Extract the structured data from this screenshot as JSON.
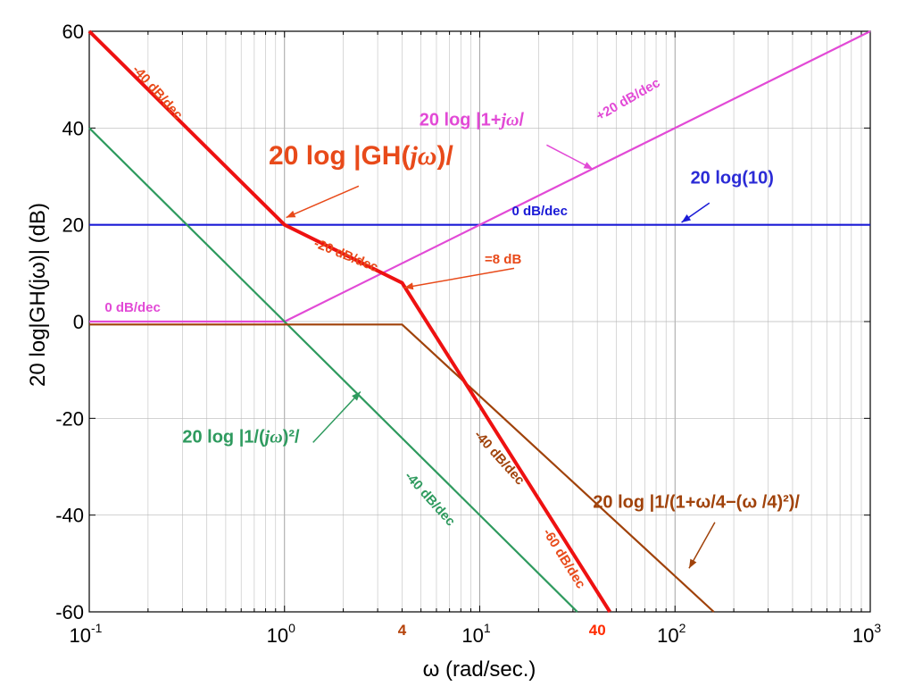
{
  "chart_data": {
    "type": "line",
    "title": "",
    "xlabel": "ω  (rad/sec.)",
    "ylabel": "20 log|GH(jω)| (dB)",
    "xscale": "log",
    "xlim": [
      0.1,
      1000
    ],
    "ylim": [
      -60,
      60
    ],
    "grid": true,
    "x_ticks": [
      {
        "mant": "10",
        "exp": "-1"
      },
      {
        "mant": "10",
        "exp": "0"
      },
      {
        "mant": "10",
        "exp": "1"
      },
      {
        "mant": "10",
        "exp": "2"
      },
      {
        "mant": "10",
        "exp": "3"
      }
    ],
    "y_ticks": [
      "60",
      "40",
      "20",
      "0",
      "-20",
      "-40",
      "-60"
    ],
    "extra_x_labels": [
      {
        "x": 4,
        "text": "4",
        "color": "#b5420a"
      },
      {
        "x": 40,
        "text": "40",
        "color": "#ff2a00"
      }
    ],
    "series": [
      {
        "id": "const",
        "color": "#1a1ad6",
        "points": [
          [
            0.1,
            20
          ],
          [
            1000,
            20
          ]
        ]
      },
      {
        "id": "zero",
        "color": "#e24ad6",
        "points": [
          [
            0.1,
            0
          ],
          [
            1,
            0
          ],
          [
            1000,
            60
          ]
        ]
      },
      {
        "id": "int2",
        "color": "#2e9a5e",
        "points": [
          [
            0.1,
            40
          ],
          [
            31.6,
            -60
          ]
        ]
      },
      {
        "id": "quad",
        "color": "#a0420a",
        "points": [
          [
            0.1,
            -0.6
          ],
          [
            4,
            -0.6
          ],
          [
            158,
            -60
          ]
        ]
      },
      {
        "id": "total",
        "color": "#ee1111",
        "points": [
          [
            0.1,
            60
          ],
          [
            1,
            20
          ],
          [
            4,
            8
          ],
          [
            46.4,
            -60
          ]
        ]
      }
    ],
    "annotations": [
      {
        "text": "-40 dB/dec",
        "color": "#e84a1a",
        "size": 15,
        "x": 0.165,
        "y": 52,
        "rotate": 48
      },
      {
        "text": "20 log |GH(",
        "italic": "jω",
        "tail": ")/",
        "color": "#e84a1a",
        "size": 30,
        "x": 0.83,
        "y": 32.5,
        "rotate": 0
      },
      {
        "text": "-20 dB/dec",
        "color": "#e84a1a",
        "size": 15,
        "x": 1.4,
        "y": 15.5,
        "rotate": 22
      },
      {
        "text": "=8 dB",
        "color": "#e84a1a",
        "size": 15,
        "x": 10.6,
        "y": 12,
        "rotate": 0
      },
      {
        "text": "0 dB/dec",
        "color": "#1a1ad6",
        "size": 15,
        "x": 14.6,
        "y": 22,
        "rotate": 0
      },
      {
        "text": "20 log(10)",
        "color": "#2b2bd6",
        "size": 20,
        "x": 120,
        "y": 28.5,
        "rotate": 0
      },
      {
        "text": "20 log |1+",
        "italic": "jω",
        "tail": "/",
        "color": "#e24ad6",
        "size": 20,
        "x": 4.9,
        "y": 40.5,
        "rotate": 0
      },
      {
        "text": "+20 dB/dec",
        "color": "#e24ad6",
        "size": 15,
        "x": 41,
        "y": 41.5,
        "rotate": -30
      },
      {
        "text": "0 dB/dec",
        "color": "#e24ad6",
        "size": 15,
        "x": 0.12,
        "y": 2,
        "rotate": 0
      },
      {
        "text": "-40 dB/dec",
        "color": "#a0420a",
        "size": 15,
        "x": 9.3,
        "y": -23.5,
        "rotate": 48
      },
      {
        "text": "20 log |1/(",
        "italic": "jω",
        "tail": ")²/",
        "color": "#2e9a5e",
        "size": 20,
        "x": 0.3,
        "y": -25,
        "rotate": 0
      },
      {
        "text": "-40 dB/dec",
        "color": "#2e9a5e",
        "size": 15,
        "x": 4.1,
        "y": -32,
        "rotate": 48
      },
      {
        "text": "-60 dB/dec",
        "color": "#e84a1a",
        "size": 15,
        "x": 21,
        "y": -43.5,
        "rotate": 58
      },
      {
        "text": "20 log |1/(1+ω/4−(ω /4)²)/",
        "color": "#a0420a",
        "size": 20,
        "x": 38,
        "y": -38.5,
        "rotate": 0
      }
    ],
    "arrows": [
      {
        "color": "#e84a1a",
        "from": [
          2.4,
          28
        ],
        "to": [
          1.02,
          21.5
        ]
      },
      {
        "color": "#e84a1a",
        "from": [
          15,
          11
        ],
        "to": [
          4.1,
          7.0
        ]
      },
      {
        "color": "#1a1ad6",
        "from": [
          150,
          24.5
        ],
        "to": [
          108,
          20.5
        ]
      },
      {
        "color": "#e24ad6",
        "from": [
          22,
          36.5
        ],
        "to": [
          38,
          31.5
        ]
      },
      {
        "color": "#2e9a5e",
        "from": [
          1.4,
          -25
        ],
        "to": [
          2.45,
          -14.5
        ]
      },
      {
        "color": "#a0420a",
        "from": [
          160,
          -41.5
        ],
        "to": [
          118,
          -51
        ]
      }
    ]
  }
}
